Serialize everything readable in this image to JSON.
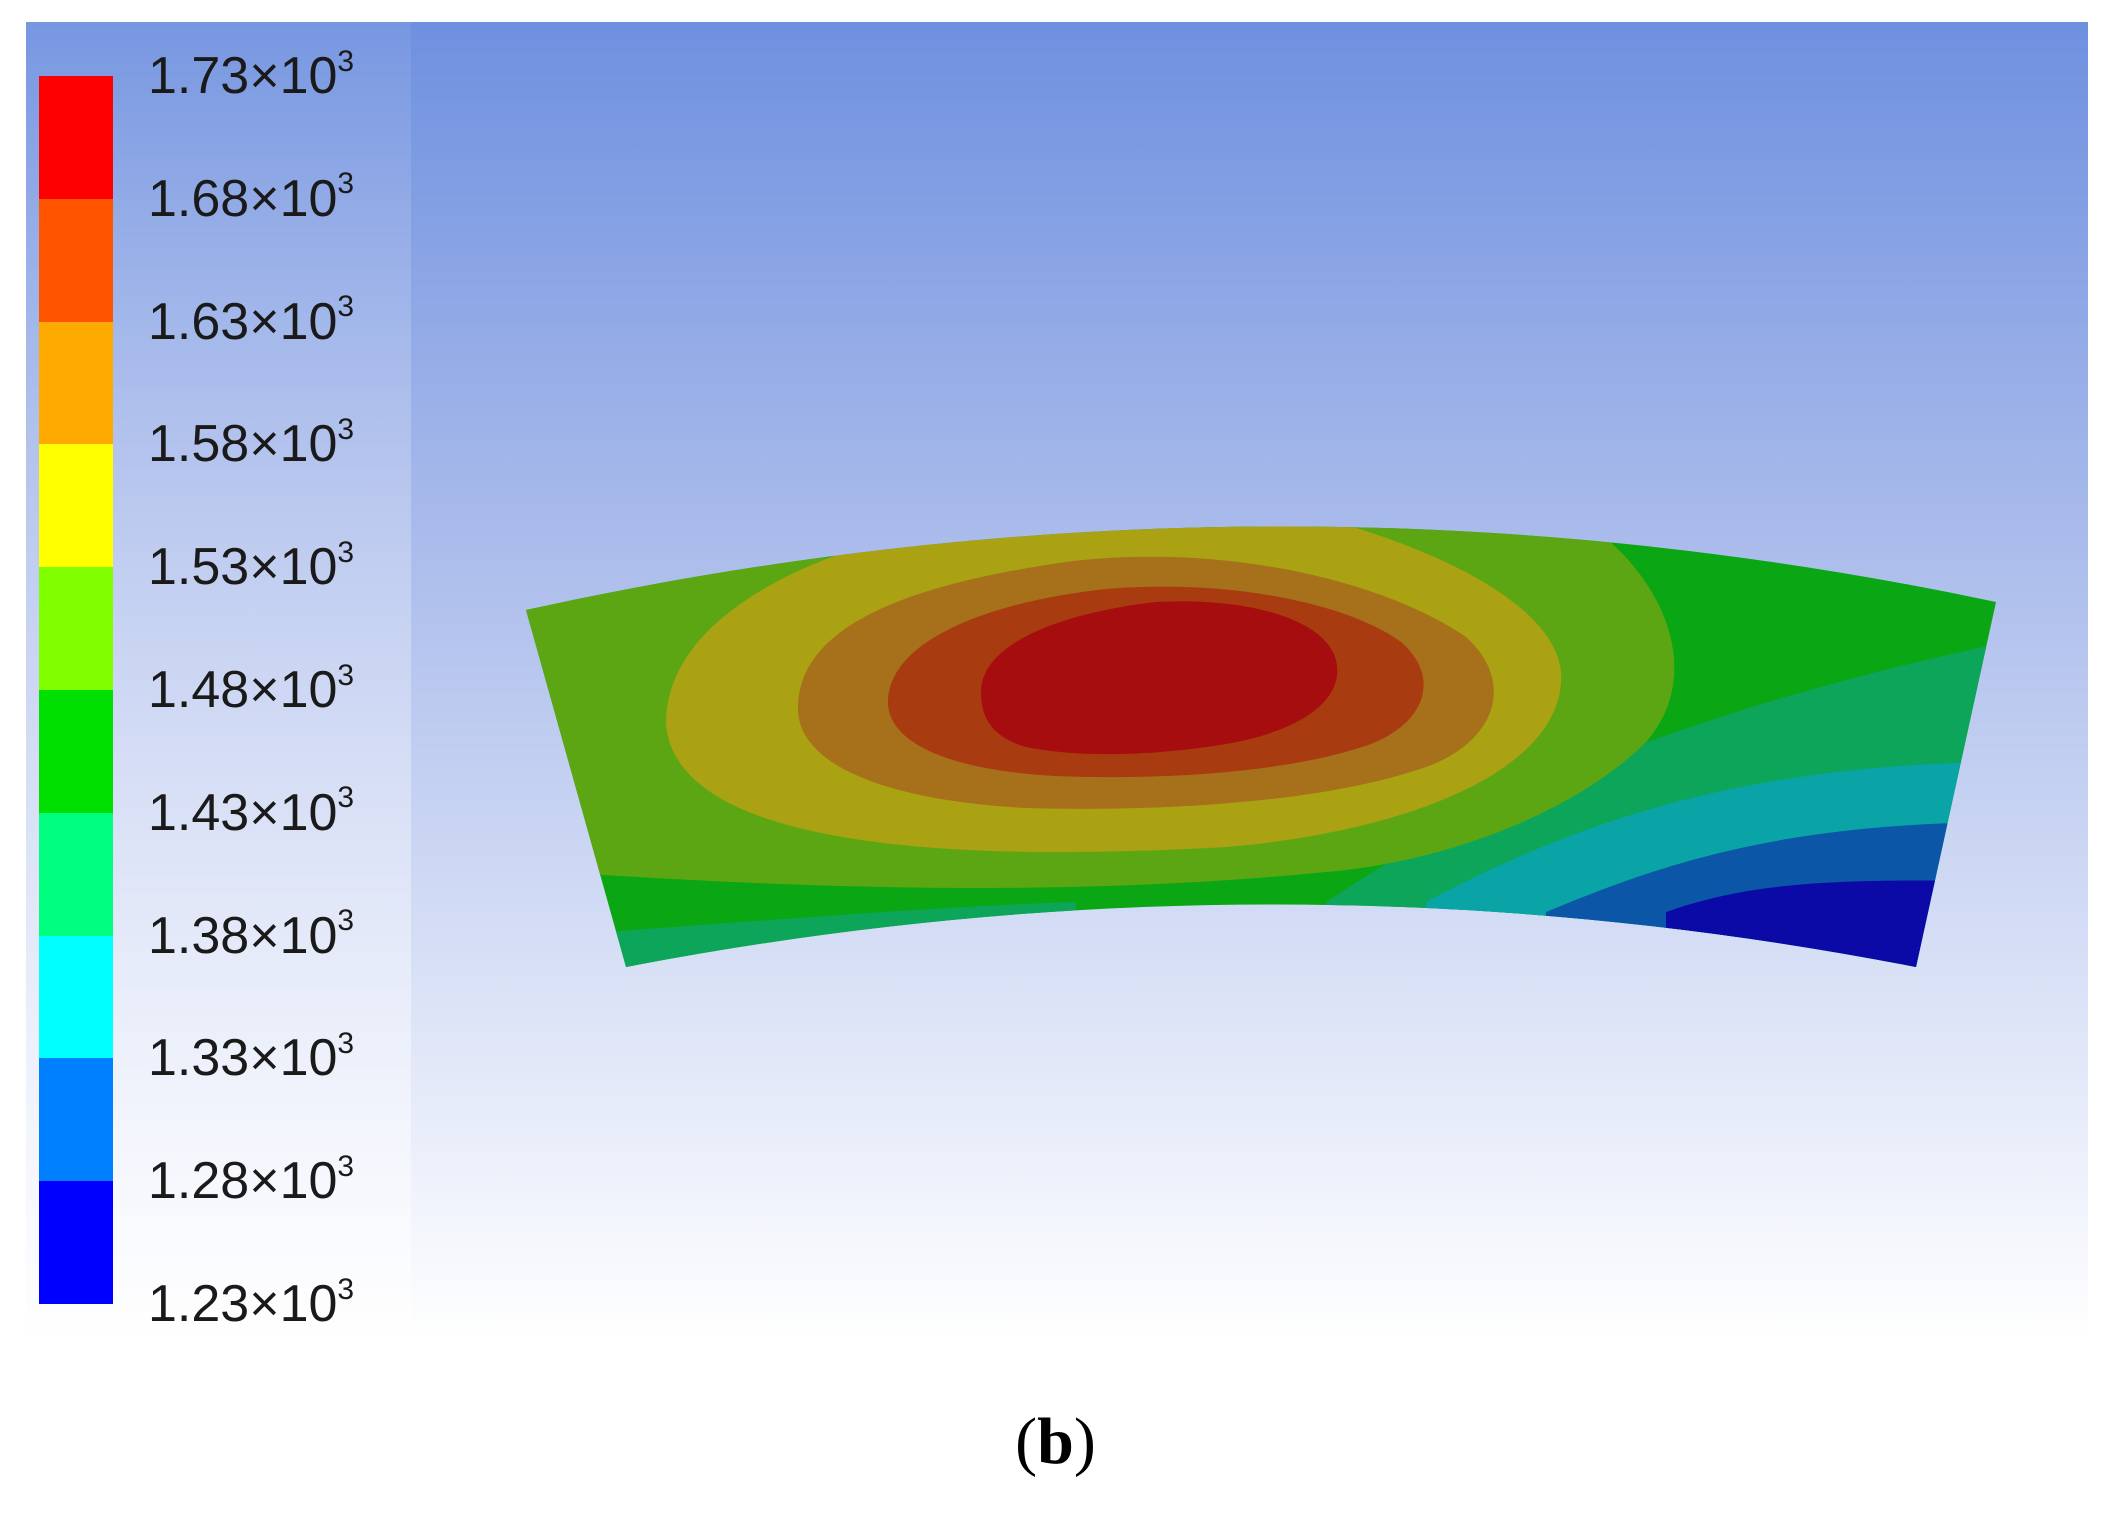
{
  "caption": {
    "label": "b"
  },
  "chart_data": {
    "type": "heatmap",
    "title": "",
    "colorbar": {
      "labels": [
        "1.73×10",
        "1.68×10",
        "1.63×10",
        "1.58×10",
        "1.53×10",
        "1.48×10",
        "1.43×10",
        "1.38×10",
        "1.33×10",
        "1.28×10",
        "1.23×10"
      ],
      "exponent": "3",
      "values": [
        1730,
        1680,
        1630,
        1580,
        1530,
        1480,
        1430,
        1380,
        1330,
        1280,
        1230
      ],
      "band_colors": [
        "#ff0000",
        "#ff5500",
        "#ffaa00",
        "#ffff00",
        "#80ff00",
        "#00e000",
        "#00ff80",
        "#00ffff",
        "#0080ff",
        "#0000ff"
      ]
    },
    "field_colors": {
      "c1730": "#a50d0f",
      "c1680": "#a83b10",
      "c1630": "#a7701a",
      "c1580": "#aaa213",
      "c1530": "#5ca614",
      "c1480": "#0aa614",
      "c1430": "#0ca55a",
      "c1380": "#0ba4a6",
      "c1330": "#0c56a8",
      "c1280": "#0b0aa6"
    }
  }
}
